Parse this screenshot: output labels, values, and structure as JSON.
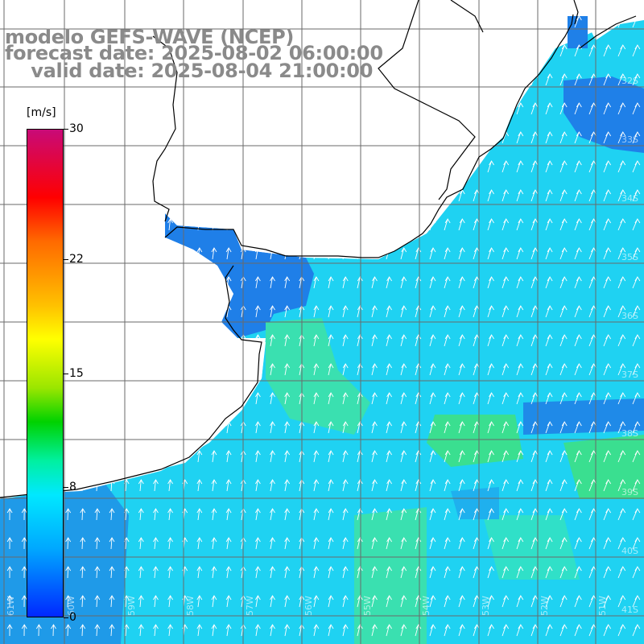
{
  "title": {
    "line1": "modelo GEFS-WAVE (NCEP)",
    "line2": "forecast date: 2025-08-02 06:00:00",
    "line3": "    valid date: 2025-08-04 21:00:00"
  },
  "colorbar": {
    "unit": "[m/s]",
    "ticks": [
      "30",
      "22",
      "15",
      "8",
      "0"
    ],
    "tick_values": [
      30,
      22,
      15,
      8,
      0
    ],
    "min": 0,
    "max": 30,
    "colors": [
      "#c80a78",
      "#ff0000",
      "#ff6a00",
      "#ffc000",
      "#ffff00",
      "#9be600",
      "#00d200",
      "#00f0a0",
      "#00e8ff",
      "#00a8ff",
      "#0028ff"
    ]
  },
  "map": {
    "variable": "wind speed with direction arrows",
    "land_color": "#ffffff",
    "coastline_color": "#000000",
    "grid_color": "#555555",
    "arrow_color": "#ffffff",
    "grid_on": true,
    "lon_labels": [
      "61W",
      "60W",
      "59W",
      "58W",
      "57W",
      "56W",
      "55W",
      "54W",
      "53W",
      "52W",
      "51W"
    ],
    "lat_labels": [
      "32S",
      "33S",
      "34S",
      "35S",
      "36S",
      "37S",
      "38S",
      "39S",
      "40S",
      "41S"
    ]
  }
}
